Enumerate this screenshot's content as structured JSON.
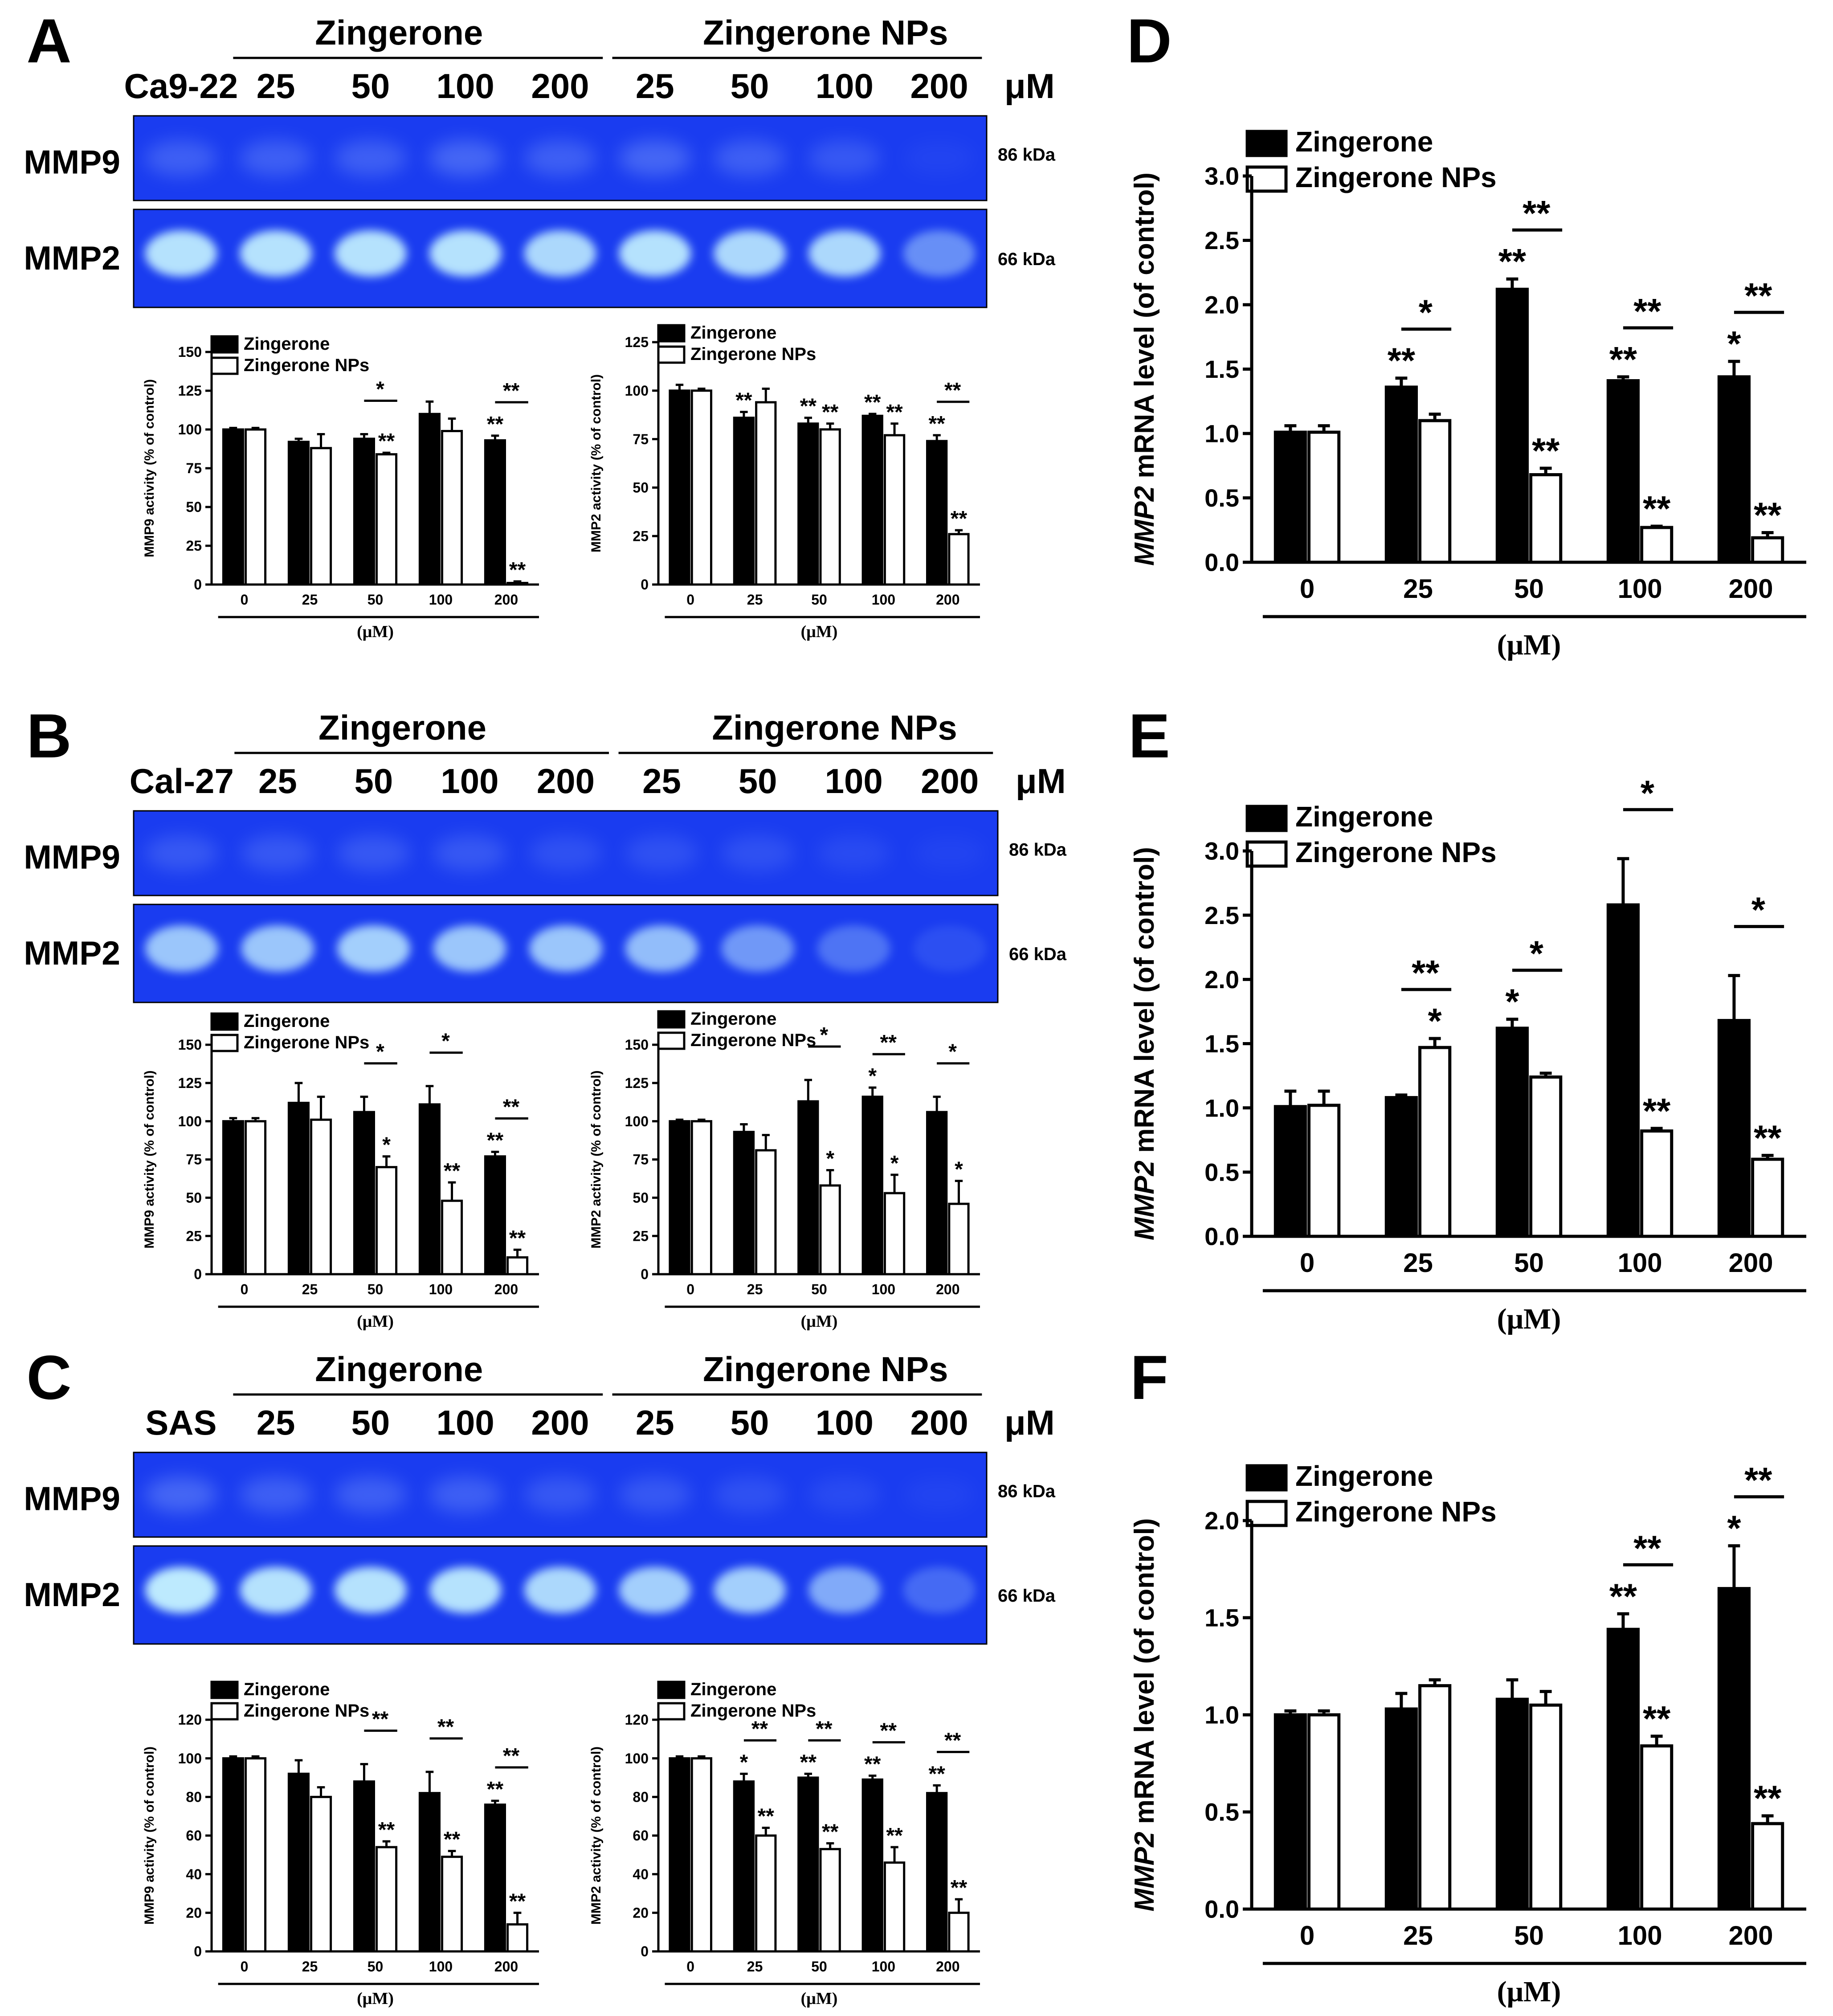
{
  "colors": {
    "zingerone": "#000000",
    "nps": "#ffffff",
    "gel_bg": "#1a3cf0",
    "gel_band": "#c6f4ff"
  },
  "unit_label": "(μM)",
  "gel_panels": [
    {
      "letter": "A",
      "cell_line": "Ca9-22",
      "group1": "Zingerone",
      "group2": "Zingerone NPs",
      "concs": [
        "25",
        "50",
        "100",
        "200",
        "25",
        "50",
        "100",
        "200"
      ],
      "uM": "μM",
      "row1": "MMP9",
      "row2": "MMP2",
      "kda1": "86 kDa",
      "kda2": "66 kDa",
      "mmp9_band": [
        0.25,
        0.25,
        0.25,
        0.3,
        0.25,
        0.3,
        0.25,
        0.2,
        0.05
      ],
      "mmp2_band": [
        0.9,
        0.9,
        0.9,
        0.9,
        0.85,
        0.9,
        0.85,
        0.85,
        0.45
      ]
    },
    {
      "letter": "B",
      "cell_line": "Cal-27",
      "group1": "Zingerone",
      "group2": "Zingerone NPs",
      "concs": [
        "25",
        "50",
        "100",
        "200",
        "25",
        "50",
        "100",
        "200"
      ],
      "uM": "μM",
      "row1": "MMP9",
      "row2": "MMP2",
      "kda1": "86 kDa",
      "kda2": "66 kDa",
      "mmp9_band": [
        0.2,
        0.2,
        0.2,
        0.2,
        0.15,
        0.15,
        0.15,
        0.1,
        0.05
      ],
      "mmp2_band": [
        0.75,
        0.75,
        0.8,
        0.75,
        0.75,
        0.7,
        0.5,
        0.3,
        0.1
      ]
    },
    {
      "letter": "C",
      "cell_line": "SAS",
      "group1": "Zingerone",
      "group2": "Zingerone NPs",
      "concs": [
        "25",
        "50",
        "100",
        "200",
        "25",
        "50",
        "100",
        "200"
      ],
      "uM": "μM",
      "row1": "MMP9",
      "row2": "MMP2",
      "kda1": "86 kDa",
      "kda2": "66 kDa",
      "mmp9_band": [
        0.3,
        0.25,
        0.25,
        0.25,
        0.2,
        0.2,
        0.15,
        0.1,
        0.05
      ],
      "mmp2_band": [
        0.95,
        0.9,
        0.9,
        0.9,
        0.85,
        0.8,
        0.8,
        0.6,
        0.25
      ]
    }
  ],
  "chart_data": [
    {
      "id": "A-MMP9",
      "type": "bar",
      "ylabel": "MMP9 activity (% of control)",
      "xlabel": "(μM)",
      "categories": [
        "0",
        "25",
        "50",
        "100",
        "200"
      ],
      "ylim": [
        0,
        150
      ],
      "yticks": [
        "0",
        "25",
        "50",
        "75",
        "100",
        "125",
        "150"
      ],
      "legend": [
        "Zingerone",
        "Zingerone NPs"
      ],
      "series": [
        {
          "name": "Zingerone",
          "values": [
            100,
            92,
            94,
            110,
            93
          ],
          "errors": [
            1,
            2,
            3,
            8,
            3
          ],
          "stars": [
            "",
            "",
            "",
            "",
            "**"
          ]
        },
        {
          "name": "Zingerone NPs",
          "values": [
            100,
            88,
            84,
            99,
            1
          ],
          "errors": [
            1,
            9,
            1,
            8,
            1
          ],
          "stars": [
            "",
            "",
            "**",
            "",
            "**"
          ]
        }
      ],
      "brackets": [
        "",
        "",
        "*",
        "",
        "**"
      ]
    },
    {
      "id": "A-MMP2",
      "type": "bar",
      "ylabel": "MMP2 activity (% of control)",
      "xlabel": "(μM)",
      "categories": [
        "0",
        "25",
        "50",
        "100",
        "200"
      ],
      "ylim": [
        0,
        125
      ],
      "yticks": [
        "0",
        "25",
        "50",
        "75",
        "100",
        "125"
      ],
      "legend": [
        "Zingerone",
        "Zingerone NPs"
      ],
      "series": [
        {
          "name": "Zingerone",
          "values": [
            100,
            86,
            83,
            87,
            74
          ],
          "errors": [
            3,
            3,
            3,
            1,
            3
          ],
          "stars": [
            "",
            "**",
            "**",
            "**",
            "**"
          ]
        },
        {
          "name": "Zingerone NPs",
          "values": [
            100,
            94,
            80,
            77,
            26
          ],
          "errors": [
            1,
            7,
            3,
            6,
            2
          ],
          "stars": [
            "",
            "",
            "**",
            "**",
            "**"
          ]
        }
      ],
      "brackets": [
        "",
        "",
        "",
        "",
        "**"
      ]
    },
    {
      "id": "B-MMP9",
      "type": "bar",
      "ylabel": "MMP9 activity (% of control)",
      "xlabel": "(μM)",
      "categories": [
        "0",
        "25",
        "50",
        "100",
        "200"
      ],
      "ylim": [
        0,
        150
      ],
      "yticks": [
        "0",
        "25",
        "50",
        "75",
        "100",
        "125",
        "150"
      ],
      "legend": [
        "Zingerone",
        "Zingerone NPs"
      ],
      "series": [
        {
          "name": "Zingerone",
          "values": [
            100,
            112,
            106,
            111,
            77
          ],
          "errors": [
            2,
            13,
            10,
            12,
            3
          ],
          "stars": [
            "",
            "",
            "",
            "",
            "**"
          ]
        },
        {
          "name": "Zingerone NPs",
          "values": [
            100,
            101,
            70,
            48,
            11
          ],
          "errors": [
            2,
            15,
            7,
            12,
            5
          ],
          "stars": [
            "",
            "",
            "*",
            "**",
            "**"
          ]
        }
      ],
      "brackets": [
        "",
        "",
        "*",
        "*",
        "**"
      ]
    },
    {
      "id": "B-MMP2",
      "type": "bar",
      "ylabel": "MMP2 activity (% of control)",
      "xlabel": "(μM)",
      "categories": [
        "0",
        "25",
        "50",
        "100",
        "200"
      ],
      "ylim": [
        0,
        150
      ],
      "yticks": [
        "0",
        "25",
        "50",
        "75",
        "100",
        "125",
        "150"
      ],
      "legend": [
        "Zingerone",
        "Zingerone NPs"
      ],
      "series": [
        {
          "name": "Zingerone",
          "values": [
            100,
            93,
            113,
            116,
            106
          ],
          "errors": [
            1,
            5,
            14,
            6,
            10
          ],
          "stars": [
            "",
            "",
            "",
            "*",
            ""
          ]
        },
        {
          "name": "Zingerone NPs",
          "values": [
            100,
            81,
            58,
            53,
            46
          ],
          "errors": [
            1,
            10,
            10,
            12,
            15
          ],
          "stars": [
            "",
            "",
            "*",
            "*",
            "*"
          ]
        }
      ],
      "brackets": [
        "",
        "",
        "*",
        "**",
        "*"
      ]
    },
    {
      "id": "C-MMP9",
      "type": "bar",
      "ylabel": "MMP9 activity (% of control)",
      "xlabel": "(μM)",
      "categories": [
        "0",
        "25",
        "50",
        "100",
        "200"
      ],
      "ylim": [
        0,
        120
      ],
      "yticks": [
        "0",
        "20",
        "40",
        "60",
        "80",
        "100",
        "120"
      ],
      "legend": [
        "Zingerone",
        "Zingerone NPs"
      ],
      "series": [
        {
          "name": "Zingerone",
          "values": [
            100,
            92,
            88,
            82,
            76
          ],
          "errors": [
            1,
            7,
            9,
            11,
            2
          ],
          "stars": [
            "",
            "",
            "",
            "",
            "**"
          ]
        },
        {
          "name": "Zingerone NPs",
          "values": [
            100,
            80,
            54,
            49,
            14
          ],
          "errors": [
            1,
            5,
            3,
            3,
            6
          ],
          "stars": [
            "",
            "",
            "**",
            "**",
            "**"
          ]
        }
      ],
      "brackets": [
        "",
        "",
        "**",
        "**",
        "**"
      ]
    },
    {
      "id": "C-MMP2",
      "type": "bar",
      "ylabel": "MMP2 activity (% of control)",
      "xlabel": "(μM)",
      "categories": [
        "0",
        "25",
        "50",
        "100",
        "200"
      ],
      "ylim": [
        0,
        120
      ],
      "yticks": [
        "0",
        "20",
        "40",
        "60",
        "80",
        "100",
        "120"
      ],
      "legend": [
        "Zingerone",
        "Zingerone NPs"
      ],
      "series": [
        {
          "name": "Zingerone",
          "values": [
            100,
            88,
            90,
            89,
            82
          ],
          "errors": [
            1,
            4,
            2,
            2,
            4
          ],
          "stars": [
            "",
            "*",
            "**",
            "**",
            "**"
          ]
        },
        {
          "name": "Zingerone NPs",
          "values": [
            100,
            60,
            53,
            46,
            20
          ],
          "errors": [
            1,
            4,
            3,
            8,
            7
          ],
          "stars": [
            "",
            "**",
            "**",
            "**",
            "**"
          ]
        }
      ],
      "brackets": [
        "",
        "**",
        "**",
        "**",
        "**"
      ]
    },
    {
      "id": "D",
      "letter": "D",
      "type": "bar",
      "ylabel_italic": "MMP2",
      "ylabel": " mRNA level (of control)",
      "xlabel": "(μM)",
      "categories": [
        "0",
        "25",
        "50",
        "100",
        "200"
      ],
      "ylim": [
        0,
        3
      ],
      "yticks": [
        "0.0",
        "0.5",
        "1.0",
        "1.5",
        "2.0",
        "2.5",
        "3.0"
      ],
      "legend": [
        "Zingerone",
        "Zingerone NPs"
      ],
      "series": [
        {
          "name": "Zingerone",
          "values": [
            1.01,
            1.36,
            2.12,
            1.41,
            1.44
          ],
          "errors": [
            0.05,
            0.07,
            0.08,
            0.03,
            0.12
          ],
          "stars": [
            "",
            "**",
            "**",
            "**",
            "*"
          ]
        },
        {
          "name": "Zingerone NPs",
          "values": [
            1.01,
            1.1,
            0.68,
            0.27,
            0.19
          ],
          "errors": [
            0.05,
            0.05,
            0.05,
            0.01,
            0.04
          ],
          "stars": [
            "",
            "",
            "**",
            "**",
            "**"
          ]
        }
      ],
      "brackets": [
        "",
        "*",
        "**",
        "**",
        "**"
      ]
    },
    {
      "id": "E",
      "letter": "E",
      "type": "bar",
      "ylabel_italic": "MMP2",
      "ylabel": " mRNA level (of control)",
      "xlabel": "(μM)",
      "categories": [
        "0",
        "25",
        "50",
        "100",
        "200"
      ],
      "ylim": [
        0,
        3
      ],
      "yticks": [
        "0.0",
        "0.5",
        "1.0",
        "1.5",
        "2.0",
        "2.5",
        "3.0"
      ],
      "legend": [
        "Zingerone",
        "Zingerone NPs"
      ],
      "series": [
        {
          "name": "Zingerone",
          "values": [
            1.01,
            1.08,
            1.62,
            2.58,
            1.68
          ],
          "errors": [
            0.12,
            0.02,
            0.07,
            0.36,
            0.35
          ],
          "stars": [
            "",
            "",
            "*",
            "",
            ""
          ]
        },
        {
          "name": "Zingerone NPs",
          "values": [
            1.02,
            1.47,
            1.24,
            0.82,
            0.6
          ],
          "errors": [
            0.11,
            0.07,
            0.03,
            0.02,
            0.03
          ],
          "stars": [
            "",
            "*",
            "",
            "**",
            "**"
          ]
        }
      ],
      "brackets": [
        "",
        "**",
        "*",
        "*",
        "*"
      ]
    },
    {
      "id": "F",
      "letter": "F",
      "type": "bar",
      "ylabel_italic": "MMP2",
      "ylabel": " mRNA level (of control)",
      "xlabel": "(μM)",
      "categories": [
        "0",
        "25",
        "50",
        "100",
        "200"
      ],
      "ylim": [
        0,
        2
      ],
      "yticks": [
        "0.0",
        "0.5",
        "1.0",
        "1.5",
        "2.0"
      ],
      "legend": [
        "Zingerone",
        "Zingerone NPs"
      ],
      "series": [
        {
          "name": "Zingerone",
          "values": [
            1.0,
            1.03,
            1.08,
            1.44,
            1.65
          ],
          "errors": [
            0.02,
            0.08,
            0.1,
            0.08,
            0.22
          ],
          "stars": [
            "",
            "",
            "",
            "**",
            "*"
          ]
        },
        {
          "name": "Zingerone NPs",
          "values": [
            1.0,
            1.15,
            1.05,
            0.84,
            0.44
          ],
          "errors": [
            0.02,
            0.03,
            0.07,
            0.05,
            0.04
          ],
          "stars": [
            "",
            "",
            "",
            "**",
            "**"
          ]
        }
      ],
      "brackets": [
        "",
        "",
        "",
        "**",
        "**"
      ]
    }
  ]
}
